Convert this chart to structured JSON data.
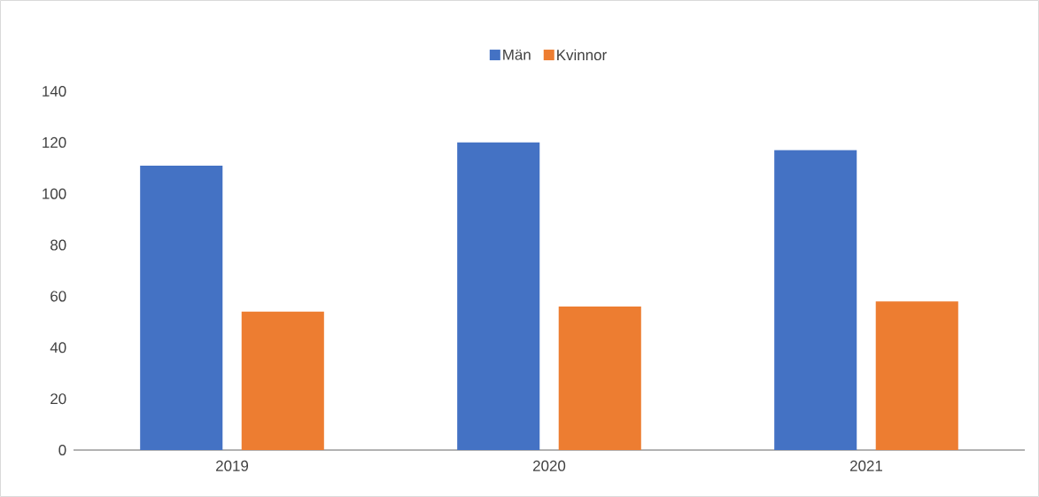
{
  "chart_data": {
    "type": "bar",
    "categories": [
      "2019",
      "2020",
      "2021"
    ],
    "series": [
      {
        "name": "Män",
        "color": "#4472c4",
        "values": [
          111,
          120,
          117
        ]
      },
      {
        "name": "Kvinnor",
        "color": "#ed7d31",
        "values": [
          54,
          56,
          58
        ]
      }
    ],
    "ylim": [
      0,
      140
    ],
    "yticks": [
      0,
      20,
      40,
      60,
      80,
      100,
      120,
      140
    ],
    "legend": "top"
  }
}
